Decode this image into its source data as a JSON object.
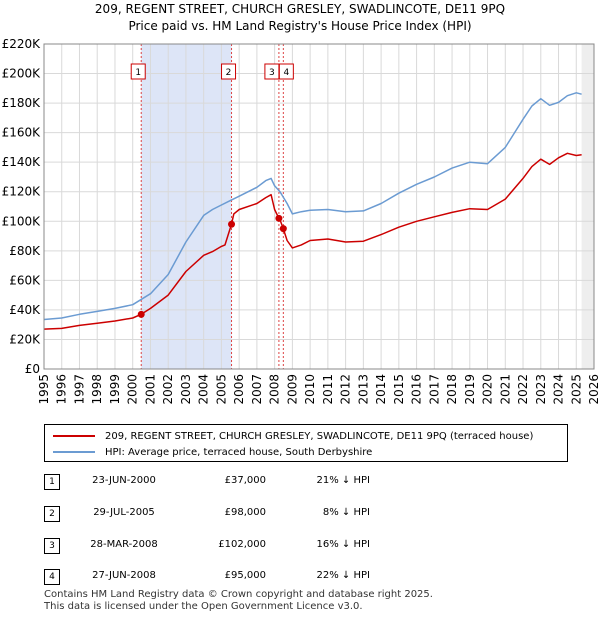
{
  "chart_data": {
    "type": "line",
    "title": "209, REGENT STREET, CHURCH GRESLEY, SWADLINCOTE, DE11 9PQ",
    "subtitle": "Price paid vs. HM Land Registry's House Price Index (HPI)",
    "xlabel": "",
    "ylabel": "",
    "xlim": [
      1995,
      2026
    ],
    "ylim": [
      0,
      220000
    ],
    "x_ticks": [
      "1995",
      "1996",
      "1997",
      "1998",
      "1999",
      "2000",
      "2001",
      "2002",
      "2003",
      "2004",
      "2005",
      "2006",
      "2007",
      "2008",
      "2009",
      "2010",
      "2011",
      "2012",
      "2013",
      "2014",
      "2015",
      "2016",
      "2017",
      "2018",
      "2019",
      "2020",
      "2021",
      "2022",
      "2023",
      "2024",
      "2025",
      "2026"
    ],
    "y_ticks": [
      "£0",
      "£20K",
      "£40K",
      "£60K",
      "£80K",
      "£100K",
      "£120K",
      "£140K",
      "£160K",
      "£180K",
      "£200K",
      "£220K"
    ],
    "y_tick_values": [
      0,
      20000,
      40000,
      60000,
      80000,
      100000,
      120000,
      140000,
      160000,
      180000,
      200000,
      220000
    ],
    "series": [
      {
        "name": "209, REGENT STREET, CHURCH GRESLEY, SWADLINCOTE, DE11 9PQ (terraced house)",
        "color": "#cc0000",
        "x": [
          1995,
          1996,
          1997,
          1998,
          1999,
          2000,
          2000.48,
          2001,
          2002,
          2003,
          2004,
          2004.5,
          2005.0,
          2005.2,
          2005.57,
          2005.7,
          2006,
          2007,
          2007.5,
          2007.8,
          2008.0,
          2008.24,
          2008.3,
          2008.49,
          2008.7,
          2009,
          2009.5,
          2010,
          2011,
          2012,
          2013,
          2014,
          2015,
          2016,
          2017,
          2018,
          2019,
          2020,
          2021,
          2022,
          2022.5,
          2023,
          2023.5,
          2024,
          2024.5,
          2025,
          2025.3
        ],
        "y": [
          27000,
          27500,
          29500,
          31000,
          32500,
          34500,
          37000,
          41000,
          50000,
          66000,
          77000,
          79500,
          83000,
          84000,
          98000,
          105000,
          108000,
          112000,
          116000,
          118000,
          108000,
          102000,
          101000,
          95000,
          87000,
          82000,
          84000,
          87000,
          88000,
          86000,
          86500,
          91000,
          96000,
          100000,
          103000,
          106000,
          108500,
          108000,
          115000,
          129000,
          137000,
          142000,
          138500,
          143000,
          146000,
          144500,
          145000
        ]
      },
      {
        "name": "HPI: Average price, terraced house, South Derbyshire",
        "color": "#6b9bd2",
        "x": [
          1995,
          1996,
          1997,
          1998,
          1999,
          2000,
          2001,
          2002,
          2003,
          2004,
          2004.5,
          2005,
          2005.5,
          2006,
          2007,
          2007.5,
          2007.8,
          2008,
          2008.3,
          2008.7,
          2009,
          2009.5,
          2010,
          2011,
          2012,
          2013,
          2014,
          2015,
          2016,
          2017,
          2018,
          2019,
          2020,
          2021,
          2022,
          2022.5,
          2023,
          2023.5,
          2024,
          2024.5,
          2025,
          2025.3
        ],
        "y": [
          33500,
          34500,
          37000,
          39000,
          41000,
          43500,
          51000,
          64000,
          86000,
          104000,
          108000,
          111000,
          114000,
          117000,
          123000,
          127500,
          129000,
          124000,
          120000,
          112000,
          105000,
          106500,
          107500,
          108000,
          106500,
          107000,
          112000,
          119000,
          125000,
          130000,
          136000,
          140000,
          139000,
          150000,
          169000,
          178000,
          183000,
          178500,
          180500,
          185000,
          187000,
          186000
        ]
      }
    ],
    "sale_markers": [
      {
        "label": "1",
        "x": 2000.48,
        "y": 37000
      },
      {
        "label": "2",
        "x": 2005.57,
        "y": 98000
      },
      {
        "label": "3",
        "x": 2008.24,
        "y": 102000
      },
      {
        "label": "4",
        "x": 2008.49,
        "y": 95000
      }
    ],
    "shaded_period": [
      2000.48,
      2005.57
    ],
    "colors": {
      "sale": "#cc0000",
      "hpi": "#6b9bd2",
      "shade": "#dde5f7",
      "marker_line": "#dd4444",
      "grid": "#d9d9d9"
    }
  },
  "legend": {
    "property_label": "209, REGENT STREET, CHURCH GRESLEY, SWADLINCOTE, DE11 9PQ (terraced house)",
    "hpi_label": "HPI: Average price, terraced house, South Derbyshire"
  },
  "transactions": [
    {
      "num": "1",
      "date": "23-JUN-2000",
      "price": "£37,000",
      "hpi": "21% ↓ HPI"
    },
    {
      "num": "2",
      "date": "29-JUL-2005",
      "price": "£98,000",
      "hpi": "8% ↓ HPI"
    },
    {
      "num": "3",
      "date": "28-MAR-2008",
      "price": "£102,000",
      "hpi": "16% ↓ HPI"
    },
    {
      "num": "4",
      "date": "27-JUN-2008",
      "price": "£95,000",
      "hpi": "22% ↓ HPI"
    }
  ],
  "footer": {
    "line1": "Contains HM Land Registry data © Crown copyright and database right 2025.",
    "line2": "This data is licensed under the Open Government Licence v3.0."
  }
}
